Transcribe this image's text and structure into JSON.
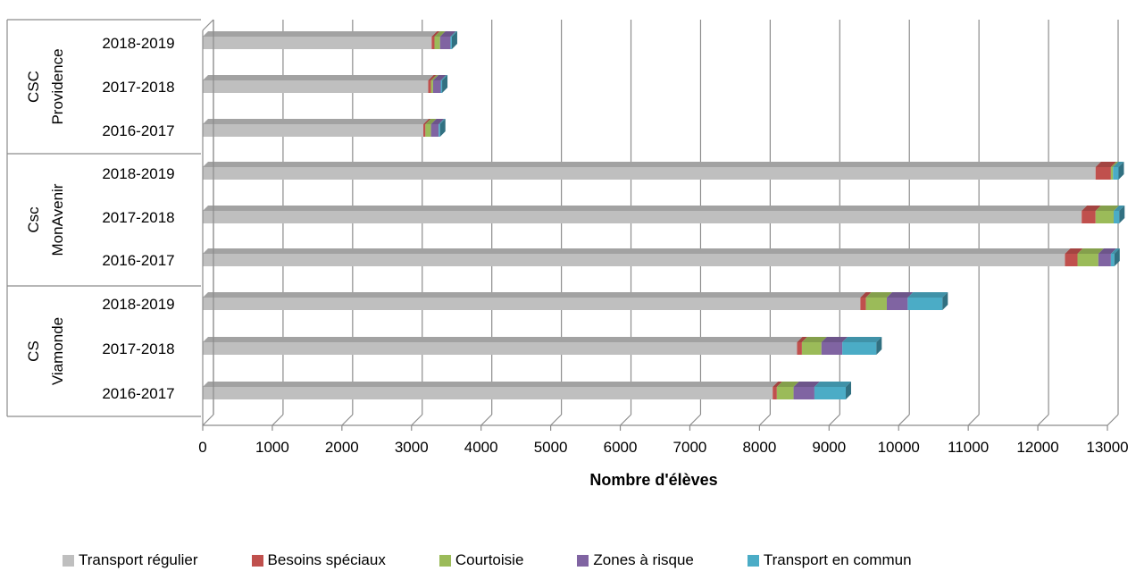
{
  "chart_data": {
    "type": "bar",
    "orientation": "horizontal",
    "stacked": true,
    "style": "3d",
    "title": "",
    "xlabel": "Nombre d'élèves",
    "ylabel": "",
    "xlim": [
      0,
      13000
    ],
    "x_ticks": [
      "0",
      "1000",
      "2000",
      "3000",
      "4000",
      "5000",
      "6000",
      "7000",
      "8000",
      "9000",
      "10000",
      "11000",
      "12000",
      "13000"
    ],
    "grid": true,
    "legend_position": "bottom",
    "groups": [
      "CSC Providence",
      "Csc MonAvenir",
      "CS Viamonde"
    ],
    "categories": [
      {
        "group": "CSC Providence",
        "label": "2018-2019"
      },
      {
        "group": "CSC Providence",
        "label": "2017-2018"
      },
      {
        "group": "CSC Providence",
        "label": "2016-2017"
      },
      {
        "group": "Csc MonAvenir",
        "label": "2018-2019"
      },
      {
        "group": "Csc MonAvenir",
        "label": "2017-2018"
      },
      {
        "group": "Csc MonAvenir",
        "label": "2016-2017"
      },
      {
        "group": "CS Viamonde",
        "label": "2018-2019"
      },
      {
        "group": "CS Viamonde",
        "label": "2017-2018"
      },
      {
        "group": "CS Viamonde",
        "label": "2016-2017"
      }
    ],
    "series": [
      {
        "name": "Transport régulier",
        "color": "#bfbfbf",
        "values": [
          3290,
          3240,
          3170,
          12830,
          12630,
          12390,
          9450,
          8540,
          8190
        ]
      },
      {
        "name": "Besoins spéciaux",
        "color": "#c0504d",
        "values": [
          40,
          40,
          30,
          220,
          200,
          180,
          80,
          70,
          60
        ]
      },
      {
        "name": "Courtoisie",
        "color": "#9bbb59",
        "values": [
          80,
          30,
          80,
          30,
          260,
          300,
          300,
          280,
          240
        ]
      },
      {
        "name": "Zones à risque",
        "color": "#8064a2",
        "values": [
          150,
          110,
          110,
          0,
          0,
          180,
          300,
          300,
          300
        ]
      },
      {
        "name": "Transport en commun",
        "color": "#4bacc6",
        "values": [
          20,
          20,
          20,
          80,
          80,
          50,
          500,
          490,
          450
        ]
      }
    ]
  }
}
